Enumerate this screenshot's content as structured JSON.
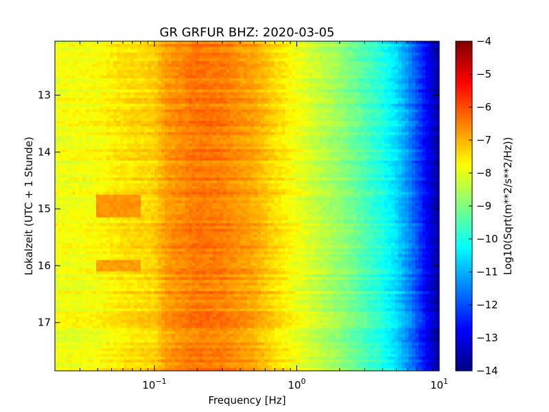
{
  "chart_data": {
    "type": "heatmap",
    "title": "GR GRFUR BHZ: 2020-03-05",
    "xlabel": "Frequency [Hz]",
    "ylabel": "Lokalzeit (UTC + 1 Stunde)",
    "xscale": "log",
    "xlim": [
      0.02,
      10
    ],
    "ylim": [
      12.05,
      17.85
    ],
    "y_inverted": true,
    "x_ticks": [
      {
        "value": 0.1,
        "base": "10",
        "exp": "−1"
      },
      {
        "value": 1,
        "base": "10",
        "exp": "0"
      },
      {
        "value": 10,
        "base": "10",
        "exp": "1"
      }
    ],
    "y_ticks": [
      13,
      14,
      15,
      16,
      17
    ],
    "colorbar": {
      "label": "Log10(Sqrt(m**2/s**2/Hz))",
      "range": [
        -14,
        -4
      ],
      "ticks": [
        "−4",
        "−5",
        "−6",
        "−7",
        "−8",
        "−9",
        "−10",
        "−11",
        "−12",
        "−13",
        "−14"
      ],
      "colormap": "jet"
    },
    "spectrum_profile": {
      "frequency_hz": [
        0.02,
        0.04,
        0.06,
        0.08,
        0.1,
        0.12,
        0.2,
        0.3,
        0.5,
        0.7,
        1.0,
        2.0,
        3.0,
        4.0,
        5.0,
        6.0,
        7.0,
        8.0,
        9.0,
        10.0
      ],
      "level": [
        -7.9,
        -7.8,
        -7.5,
        -7.4,
        -7.3,
        -6.8,
        -6.4,
        -6.5,
        -6.9,
        -7.4,
        -7.9,
        -8.8,
        -9.5,
        -10.0,
        -10.6,
        -11.3,
        -12.0,
        -12.7,
        -13.3,
        -13.8
      ]
    },
    "features": [
      {
        "frequency_range_hz": [
          0.04,
          0.08
        ],
        "time_range": [
          14.75,
          15.15
        ],
        "level": -6.7
      },
      {
        "frequency_range_hz": [
          0.04,
          0.08
        ],
        "time_range": [
          15.9,
          16.1
        ],
        "level": -6.8
      }
    ]
  }
}
